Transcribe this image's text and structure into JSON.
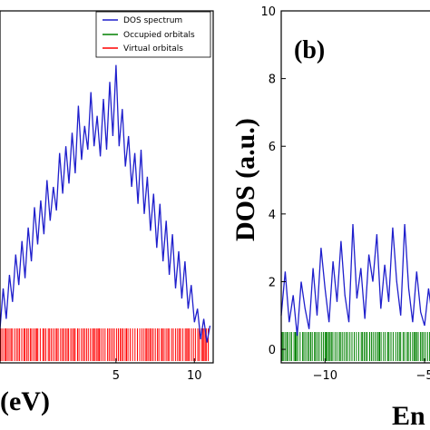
{
  "chart_data": [
    {
      "panel": "a",
      "type": "line",
      "xlabel": "(eV)",
      "ylabel": "",
      "panel_label": "",
      "xlim": [
        -2.4,
        11.2
      ],
      "ylim": [
        -0.4,
        10
      ],
      "x_ticks": [
        5,
        10
      ],
      "x_tick_labels": [
        "5",
        "10"
      ],
      "y_ticks": [],
      "y_tick_labels": [],
      "legend_position": "top-right",
      "legend": [
        "DOS spectrum",
        "Occupied orbitals",
        "Virtual orbitals"
      ],
      "series": [
        {
          "name": "DOS spectrum",
          "color": "#1f1fcc",
          "x": [
            -2.4,
            -2.2,
            -2.0,
            -1.8,
            -1.6,
            -1.4,
            -1.2,
            -1.0,
            -0.8,
            -0.6,
            -0.4,
            -0.2,
            0.0,
            0.2,
            0.4,
            0.6,
            0.8,
            1.0,
            1.2,
            1.4,
            1.6,
            1.8,
            2.0,
            2.2,
            2.4,
            2.6,
            2.8,
            3.0,
            3.2,
            3.4,
            3.6,
            3.8,
            4.0,
            4.2,
            4.4,
            4.6,
            4.8,
            5.0,
            5.2,
            5.4,
            5.6,
            5.8,
            6.0,
            6.2,
            6.4,
            6.6,
            6.8,
            7.0,
            7.2,
            7.4,
            7.6,
            7.8,
            8.0,
            8.2,
            8.4,
            8.6,
            8.8,
            9.0,
            9.2,
            9.4,
            9.6,
            9.8,
            10.0,
            10.2,
            10.4,
            10.6,
            10.8,
            11.0
          ],
          "y": [
            0.6,
            1.8,
            0.9,
            2.2,
            1.4,
            2.8,
            1.9,
            3.2,
            2.1,
            3.6,
            2.6,
            4.2,
            3.1,
            4.4,
            3.4,
            5.0,
            3.8,
            4.8,
            4.1,
            5.8,
            4.6,
            6.0,
            4.9,
            6.4,
            5.2,
            7.2,
            5.6,
            6.6,
            5.9,
            7.6,
            6.0,
            6.9,
            5.7,
            7.4,
            5.9,
            7.9,
            6.3,
            8.4,
            6.0,
            7.1,
            5.4,
            6.3,
            4.8,
            5.8,
            4.3,
            5.9,
            4.0,
            5.1,
            3.5,
            4.6,
            3.0,
            4.3,
            2.6,
            3.8,
            2.2,
            3.4,
            1.8,
            2.9,
            1.5,
            2.6,
            1.2,
            1.9,
            0.8,
            1.2,
            0.3,
            0.9,
            0.2,
            0.7
          ]
        },
        {
          "name": "Virtual orbitals",
          "color": "#ff0000",
          "type": "stick",
          "x_range": [
            -2.4,
            11.0
          ]
        }
      ]
    },
    {
      "panel": "b",
      "type": "line",
      "xlabel": "En",
      "ylabel": "DOS (a.u.)",
      "panel_label": "(b)",
      "xlim": [
        -12.2,
        -4.0
      ],
      "ylim": [
        -0.4,
        10
      ],
      "x_ticks": [
        -10,
        -5
      ],
      "x_tick_labels": [
        "−10",
        "−5"
      ],
      "y_ticks": [
        0,
        2,
        4,
        6,
        8,
        10
      ],
      "y_tick_labels": [
        "0",
        "2",
        "4",
        "6",
        "8",
        "10"
      ],
      "series": [
        {
          "name": "DOS spectrum",
          "color": "#1f1fcc",
          "x": [
            -12.2,
            -12.0,
            -11.8,
            -11.6,
            -11.4,
            -11.2,
            -11.0,
            -10.8,
            -10.6,
            -10.4,
            -10.2,
            -10.0,
            -9.8,
            -9.6,
            -9.4,
            -9.2,
            -9.0,
            -8.8,
            -8.6,
            -8.4,
            -8.2,
            -8.0,
            -7.8,
            -7.6,
            -7.4,
            -7.2,
            -7.0,
            -6.8,
            -6.6,
            -6.4,
            -6.2,
            -6.0,
            -5.8,
            -5.6,
            -5.4,
            -5.2,
            -5.0,
            -4.8,
            -4.6,
            -4.4,
            -4.2,
            -4.0
          ],
          "y": [
            1.0,
            2.3,
            0.8,
            1.6,
            0.4,
            2.0,
            1.2,
            0.6,
            2.4,
            1.0,
            3.0,
            1.8,
            0.8,
            2.6,
            1.4,
            3.2,
            1.6,
            0.8,
            3.7,
            1.5,
            2.4,
            0.9,
            2.8,
            2.0,
            3.4,
            1.2,
            2.5,
            1.4,
            3.6,
            2.0,
            1.0,
            3.7,
            1.8,
            0.8,
            2.3,
            1.1,
            0.7,
            1.8,
            0.9,
            1.4,
            0.5,
            0.2
          ]
        },
        {
          "name": "Occupied orbitals",
          "color": "#008000",
          "type": "stick",
          "x_range": [
            -12.2,
            -4.0
          ]
        }
      ]
    }
  ],
  "legend_colors": {
    "dos": "#1f1fcc",
    "occupied": "#008000",
    "virtual": "#ff0000"
  }
}
